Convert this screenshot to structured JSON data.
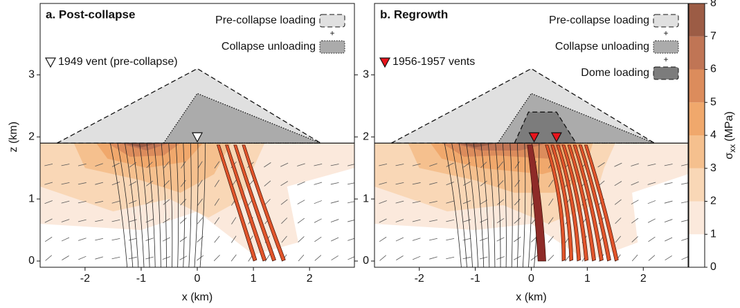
{
  "chart_data": [
    {
      "type": "stress-section",
      "title": "a. Post-collapse",
      "xlabel": "x (km)",
      "ylabel": "z (km)",
      "xlim": [
        -2.8,
        2.8
      ],
      "ylim": [
        -0.1,
        4.15
      ],
      "xticks": [
        -2,
        -1,
        0,
        1,
        2
      ],
      "yticks": [
        0,
        1,
        2,
        3
      ],
      "surface_z": 1.9,
      "loads": [
        {
          "name": "Pre-collapse loading",
          "color": "#e0e0e0",
          "stroke": "dashed",
          "x": [
            -2.5,
            0,
            2.2
          ],
          "z": [
            1.9,
            3.1,
            1.9
          ]
        },
        {
          "name": "Collapse unloading",
          "color": "#ababab",
          "stroke": "dotted",
          "x": [
            -0.6,
            0,
            2.2
          ],
          "z": [
            1.9,
            2.7,
            1.9
          ]
        }
      ],
      "legend_joiner": "+",
      "vent_label": "1949 vent (pre-collapse)",
      "vents_x": [
        0
      ],
      "vent_color": "none",
      "regions": [
        {
          "min": 1,
          "x": [
            -2.8,
            2.8,
            2.8,
            1.6,
            1.8,
            1.0,
            0.0,
            -1.0,
            -2.8
          ],
          "z": [
            1.9,
            1.9,
            1.5,
            1.2,
            0.3,
            0.1,
            0.8,
            0.5,
            0.6
          ]
        },
        {
          "min": 2,
          "x": [
            -2.8,
            1.2,
            1.0,
            0.8,
            0.2,
            -0.5,
            -1.5,
            -2.8
          ],
          "z": [
            1.9,
            1.9,
            1.5,
            1.0,
            0.7,
            1.0,
            0.8,
            1.2
          ]
        },
        {
          "min": 3,
          "x": [
            -2.2,
            0.6,
            0.3,
            -0.3,
            -1.0,
            -2.0
          ],
          "z": [
            1.9,
            1.9,
            1.4,
            1.1,
            1.3,
            1.5
          ]
        },
        {
          "min": 4,
          "x": [
            -1.8,
            0.1,
            -0.2,
            -0.9,
            -1.6
          ],
          "z": [
            1.9,
            1.9,
            1.6,
            1.5,
            1.65
          ]
        },
        {
          "min": 5,
          "x": [
            -1.6,
            -0.3,
            -0.6,
            -1.2
          ],
          "z": [
            1.9,
            1.9,
            1.7,
            1.68
          ]
        },
        {
          "min": 6,
          "x": [
            -1.4,
            -0.5,
            -0.9
          ],
          "z": [
            1.9,
            1.9,
            1.78
          ]
        },
        {
          "min": 7,
          "x": [
            -1.3,
            -0.7,
            -1.0
          ],
          "z": [
            1.9,
            1.9,
            1.83
          ]
        }
      ]
    },
    {
      "type": "stress-section",
      "title": "b. Regrowth",
      "xlabel": "x (km)",
      "xlim": [
        -2.8,
        2.8
      ],
      "ylim": [
        -0.1,
        4.15
      ],
      "xticks": [
        -2,
        -1,
        0,
        1,
        2
      ],
      "yticks": [
        0,
        1,
        2,
        3
      ],
      "surface_z": 1.9,
      "loads": [
        {
          "name": "Pre-collapse loading",
          "color": "#e0e0e0",
          "stroke": "dashed",
          "x": [
            -2.5,
            0,
            2.2
          ],
          "z": [
            1.9,
            3.1,
            1.9
          ]
        },
        {
          "name": "Collapse unloading",
          "color": "#ababab",
          "stroke": "dotted",
          "x": [
            -0.6,
            0,
            2.2
          ],
          "z": [
            1.9,
            2.7,
            1.9
          ]
        },
        {
          "name": "Dome loading",
          "color": "#7c7c7c",
          "stroke": "dashed",
          "x": [
            -0.3,
            -0.05,
            0.45,
            0.8
          ],
          "z": [
            1.9,
            2.4,
            2.4,
            1.9
          ]
        }
      ],
      "legend_joiner": "+",
      "vent_label": "1956-1957 vents",
      "vents_x": [
        0.05,
        0.45
      ],
      "vent_color": "#e8141c",
      "regions": [
        {
          "min": 1,
          "x": [
            -2.8,
            2.8,
            2.8,
            1.8,
            1.9,
            1.0,
            0.0,
            -1.0,
            -2.8
          ],
          "z": [
            1.9,
            1.9,
            1.4,
            1.1,
            0.3,
            0.0,
            0.6,
            0.5,
            0.6
          ]
        },
        {
          "min": 2,
          "x": [
            -2.8,
            1.5,
            1.3,
            1.1,
            0.3,
            -0.5,
            -1.5,
            -2.8
          ],
          "z": [
            1.9,
            1.9,
            1.5,
            0.9,
            0.6,
            0.9,
            0.8,
            1.2
          ]
        },
        {
          "min": 3,
          "x": [
            -2.2,
            1.1,
            0.9,
            0.4,
            -0.3,
            -1.0,
            -2.0
          ],
          "z": [
            1.9,
            1.9,
            1.3,
            1.1,
            1.1,
            1.3,
            1.5
          ]
        },
        {
          "min": 4,
          "x": [
            -1.8,
            0.9,
            0.6,
            0.2,
            -0.9,
            -1.6
          ],
          "z": [
            1.9,
            1.9,
            1.5,
            1.4,
            1.5,
            1.65
          ]
        },
        {
          "min": 5,
          "x": [
            -1.6,
            0.6,
            0.3,
            -0.6,
            -1.2
          ],
          "z": [
            1.9,
            1.9,
            1.65,
            1.7,
            1.68
          ]
        },
        {
          "min": 6,
          "x": [
            -1.4,
            0.3,
            -0.2,
            -0.9
          ],
          "z": [
            1.9,
            1.9,
            1.78,
            1.78
          ]
        },
        {
          "min": 7,
          "x": [
            -1.3,
            -0.6,
            -1.0
          ],
          "z": [
            1.9,
            1.9,
            1.83
          ]
        }
      ]
    },
    {
      "type": "colorbar",
      "label_main": "σ",
      "label_sub": "xx",
      "label_unit": "(MPa)",
      "lim": [
        0,
        8
      ],
      "ticks": [
        0,
        1,
        2,
        3,
        4,
        5,
        6,
        7,
        8
      ],
      "colors": [
        "#ffffff",
        "#fbe9dc",
        "#f9d7b6",
        "#f5c08e",
        "#f0a86c",
        "#dc8c5c",
        "#c07555",
        "#9c5c45"
      ]
    }
  ]
}
